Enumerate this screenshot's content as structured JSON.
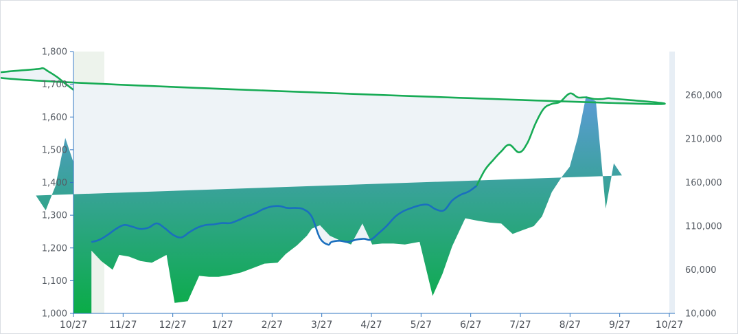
{
  "chart_data": {
    "type": "area",
    "title": "",
    "xlabel": "",
    "ylabel": "",
    "x_ticks": [
      "10/27",
      "11/27",
      "12/27",
      "1/27",
      "2/27",
      "3/27",
      "4/27",
      "5/27",
      "6/27",
      "7/27",
      "8/27",
      "9/27",
      "10/27"
    ],
    "y_left": {
      "ticks": [
        "1,000",
        "1,100",
        "1,200",
        "1,300",
        "1,400",
        "1,500",
        "1,600",
        "1,700",
        "1,800"
      ],
      "range": [
        1000,
        1800
      ]
    },
    "y_right": {
      "ticks": [
        "10,000",
        "60,000",
        "110,000",
        "160,000",
        "210,000",
        "260,000"
      ],
      "range": [
        10000,
        310000
      ]
    },
    "grid": false,
    "legend": "none",
    "colors": {
      "index_line": "#1a6fbe",
      "index_line_recent": "#17ab55",
      "area_top": "#5b9bd5",
      "area_bottom": "#0aac47",
      "envelope_fill": "#eef3f7",
      "left_band": "#edf3ec",
      "right_band": "#e7eef5",
      "axis": "#2f74c0"
    },
    "series": [
      {
        "axis": "left",
        "x": [
          "11/07",
          "11/12",
          "11/17",
          "11/22",
          "11/27",
          "12/02",
          "12/07",
          "12/12",
          "12/17",
          "12/22",
          "12/27",
          "01/01",
          "01/06",
          "01/11",
          "01/16",
          "01/21",
          "01/26",
          "01/31",
          "02/05",
          "02/10",
          "02/15",
          "02/20",
          "02/25",
          "03/02",
          "03/07",
          "03/12",
          "03/17",
          "03/22",
          "03/27",
          "04/01",
          "04/03",
          "04/08",
          "04/13",
          "04/18",
          "04/23",
          "04/27",
          "05/02",
          "05/07",
          "05/12",
          "05/17",
          "05/22",
          "05/27",
          "06/01",
          "06/06",
          "06/11",
          "06/16",
          "06/21",
          "06/26",
          "07/01",
          "07/06",
          "07/11",
          "07/16",
          "07/21",
          "07/27",
          "08/01",
          "08/06",
          "08/11",
          "08/16",
          "08/21",
          "08/27",
          "09/01",
          "09/06",
          "09/11",
          "09/16",
          "09/21",
          "09/27",
          "10/02",
          "10/07",
          "10/12",
          "10/17",
          "10/22",
          "10/27"
        ],
        "values": [
          1218,
          1225,
          1240,
          1258,
          1270,
          1265,
          1258,
          1262,
          1275,
          1260,
          1240,
          1232,
          1248,
          1262,
          1270,
          1272,
          1276,
          1276,
          1285,
          1296,
          1305,
          1318,
          1326,
          1328,
          1322,
          1322,
          1318,
          1295,
          1230,
          1210,
          1218,
          1222,
          1218,
          1225,
          1228,
          1225,
          1245,
          1268,
          1295,
          1312,
          1322,
          1330,
          1332,
          1318,
          1315,
          1345,
          1362,
          1372,
          1390,
          1438,
          1468,
          1495,
          1515,
          1492,
          1520,
          1580,
          1625,
          1640,
          1646,
          1672,
          1660,
          1660,
          1655,
          1655,
          1657,
          1642,
          1712,
          1748,
          1738,
          1722,
          1702,
          1683
        ]
      },
      {
        "axis": "right",
        "x": [
          "11/07",
          "11/13",
          "11/20",
          "11/24",
          "11/30",
          "12/07",
          "12/14",
          "12/19",
          "12/23",
          "12/28",
          "01/05",
          "01/12",
          "01/18",
          "01/24",
          "01/31",
          "02/07",
          "02/14",
          "02/21",
          "03/01",
          "03/06",
          "03/13",
          "03/19",
          "03/22",
          "03/27",
          "04/02",
          "04/09",
          "04/15",
          "04/22",
          "04/28",
          "05/04",
          "05/11",
          "05/18",
          "05/27",
          "06/04",
          "06/10",
          "06/16",
          "06/24",
          "07/02",
          "07/09",
          "07/16",
          "07/23",
          "07/30",
          "08/05",
          "08/10",
          "08/16",
          "08/22",
          "08/27",
          "09/01",
          "09/06",
          "09/12",
          "09/18",
          "09/23",
          "09/28",
          "10/04",
          "10/10",
          "10/16",
          "10/22",
          "10/27"
        ],
        "values": [
          82000,
          70000,
          60000,
          77000,
          75000,
          70000,
          68000,
          73000,
          77000,
          22000,
          24000,
          53000,
          52000,
          52000,
          54000,
          57000,
          62000,
          67000,
          68000,
          78000,
          88000,
          99000,
          107000,
          111000,
          99000,
          93000,
          89000,
          113000,
          89000,
          90000,
          90000,
          89000,
          92000,
          30000,
          55000,
          87000,
          119000,
          116000,
          114000,
          113000,
          101000,
          106000,
          110000,
          121000,
          149000,
          166000,
          178000,
          212000,
          259000,
          253000,
          130000,
          182000,
          168000,
          145000,
          128000,
          156000,
          211000,
          183000
        ]
      }
    ]
  }
}
